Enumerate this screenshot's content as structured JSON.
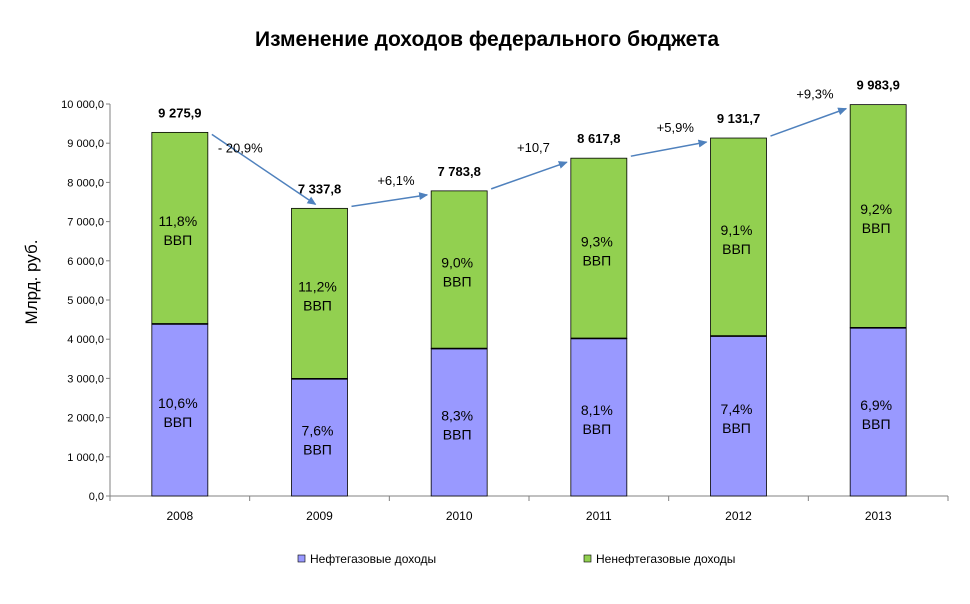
{
  "chart_data": {
    "type": "bar",
    "stacked": true,
    "title": "Изменение доходов федерального бюджета",
    "ylabel": "Млрд. руб.",
    "xlabel": "",
    "ylim": [
      0,
      10000
    ],
    "yticks": [
      "0,0",
      "1 000,0",
      "2 000,0",
      "3 000,0",
      "4 000,0",
      "5 000,0",
      "6 000,0",
      "7 000,0",
      "8 000,0",
      "9 000,0",
      "10 000,0"
    ],
    "categories": [
      "2008",
      "2009",
      "2010",
      "2011",
      "2012",
      "2013"
    ],
    "series": [
      {
        "name": "Нефтегазовые доходы",
        "color": "#9999ff",
        "values": [
          4390,
          2990,
          3760,
          4020,
          4080,
          4290
        ],
        "labels": [
          [
            "10,6%",
            "ВВП"
          ],
          [
            "7,6%",
            "ВВП"
          ],
          [
            "8,3%",
            "ВВП"
          ],
          [
            "8,1%",
            "ВВП"
          ],
          [
            "7,4%",
            "ВВП"
          ],
          [
            "6,9%",
            "ВВП"
          ]
        ]
      },
      {
        "name": "Ненефтегазовые доходы",
        "color": "#92d050",
        "values": [
          4885.9,
          4347.8,
          4023.8,
          4597.8,
          5051.7,
          5693.9
        ],
        "labels": [
          [
            "11,8%",
            "ВВП"
          ],
          [
            "11,2%",
            "ВВП"
          ],
          [
            "9,0%",
            "ВВП"
          ],
          [
            "9,3%",
            "ВВП"
          ],
          [
            "9,1%",
            "ВВП"
          ],
          [
            "9,2%",
            "ВВП"
          ]
        ]
      }
    ],
    "totals": [
      "9 275,9",
      "7 337,8",
      "7 783,8",
      "8 617,8",
      "9 131,7",
      "9 983,9"
    ],
    "total_values": [
      9275.9,
      7337.8,
      7783.8,
      8617.8,
      9131.7,
      9983.9
    ],
    "growth_labels": [
      "- 20,9%",
      "+6,1%",
      "+10,7",
      "+5,9%",
      "+9,3%"
    ],
    "legend_position": "bottom",
    "grid": false,
    "arrow_color": "#4f81bd"
  }
}
